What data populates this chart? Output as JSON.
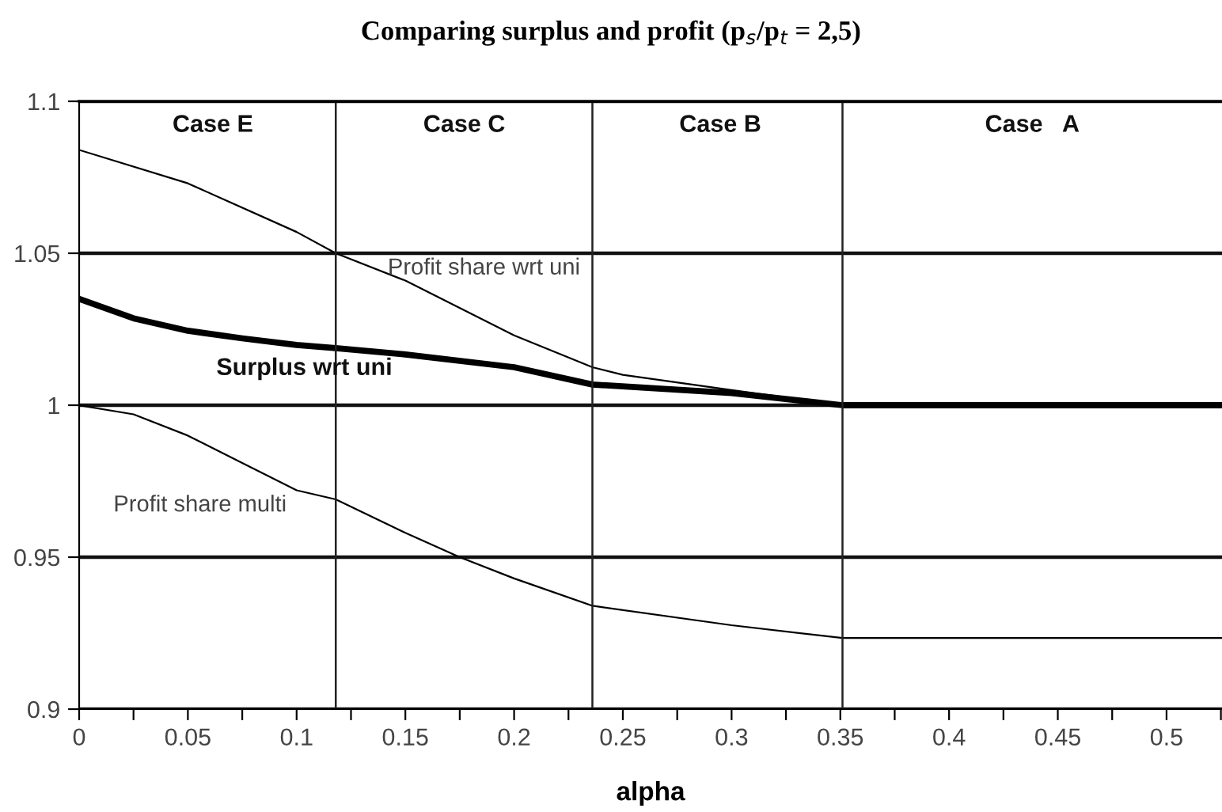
{
  "chart_data": {
    "type": "line",
    "title": "Comparing surplus and profit (p$_{s}$/p$_{t}$ = 2,5)",
    "xlabel": "alpha",
    "xlim": [
      0,
      0.5255
    ],
    "ylim": [
      0.9,
      1.1
    ],
    "xticks": [
      0,
      {
        "value": 0.025,
        "label": null
      },
      0.05,
      {
        "value": 0.075,
        "label": null
      },
      0.1,
      {
        "value": 0.125,
        "label": null
      },
      0.15,
      {
        "value": 0.175,
        "label": null
      },
      0.2,
      {
        "value": 0.225,
        "label": null
      },
      0.25,
      {
        "value": 0.275,
        "label": null
      },
      0.3,
      {
        "value": 0.325,
        "label": null
      },
      0.35,
      {
        "value": 0.375,
        "label": null
      },
      0.4,
      {
        "value": 0.425,
        "label": null
      },
      0.45,
      {
        "value": 0.475,
        "label": null
      },
      0.5,
      {
        "value": 0.525,
        "label": null
      }
    ],
    "yticks": [
      0.9,
      0.95,
      1,
      1.05,
      1.1
    ],
    "grid": "y",
    "line_style": "solid",
    "marker": "none",
    "series": [
      {
        "color": "#000000",
        "x": [
          0,
          0.05,
          0.1,
          0.118,
          0.15,
          0.2,
          0.236,
          0.25,
          0.3,
          0.351,
          0.5255
        ],
        "values": [
          1.084,
          1.073,
          1.057,
          1.05,
          1.041,
          1.023,
          1.0125,
          1.01,
          1.005,
          1.0,
          1.0
        ]
      },
      {
        "color": "#000000",
        "x": [
          0,
          0.025,
          0.05,
          0.075,
          0.1,
          0.118,
          0.15,
          0.2,
          0.236,
          0.3,
          0.351,
          0.5255
        ],
        "values": [
          1.035,
          1.0286,
          1.0245,
          1.022,
          1.0198,
          1.0188,
          1.0167,
          1.0125,
          1.0068,
          1.004,
          1.0,
          1.0
        ]
      },
      {
        "color": "#000000",
        "x": [
          0,
          0.025,
          0.05,
          0.075,
          0.1,
          0.118,
          0.15,
          0.175,
          0.2,
          0.236,
          0.3,
          0.351,
          0.5255
        ],
        "values": [
          1.0,
          0.997,
          0.99,
          0.981,
          0.972,
          0.969,
          0.958,
          0.95,
          0.943,
          0.934,
          0.9276,
          0.9234,
          0.9234
        ]
      }
    ],
    "ref_lines": [
      {
        "axis": "x",
        "value": 0.118,
        "label": null
      },
      {
        "axis": "x",
        "value": 0.236,
        "label": null
      },
      {
        "axis": "x",
        "value": 0.351,
        "label": null
      }
    ],
    "annotations": [
      "Case E",
      "Case C",
      "Case B",
      "Case   A",
      "Profit share wrt uni",
      "Surplus wrt uni",
      "Profit share multi"
    ]
  }
}
